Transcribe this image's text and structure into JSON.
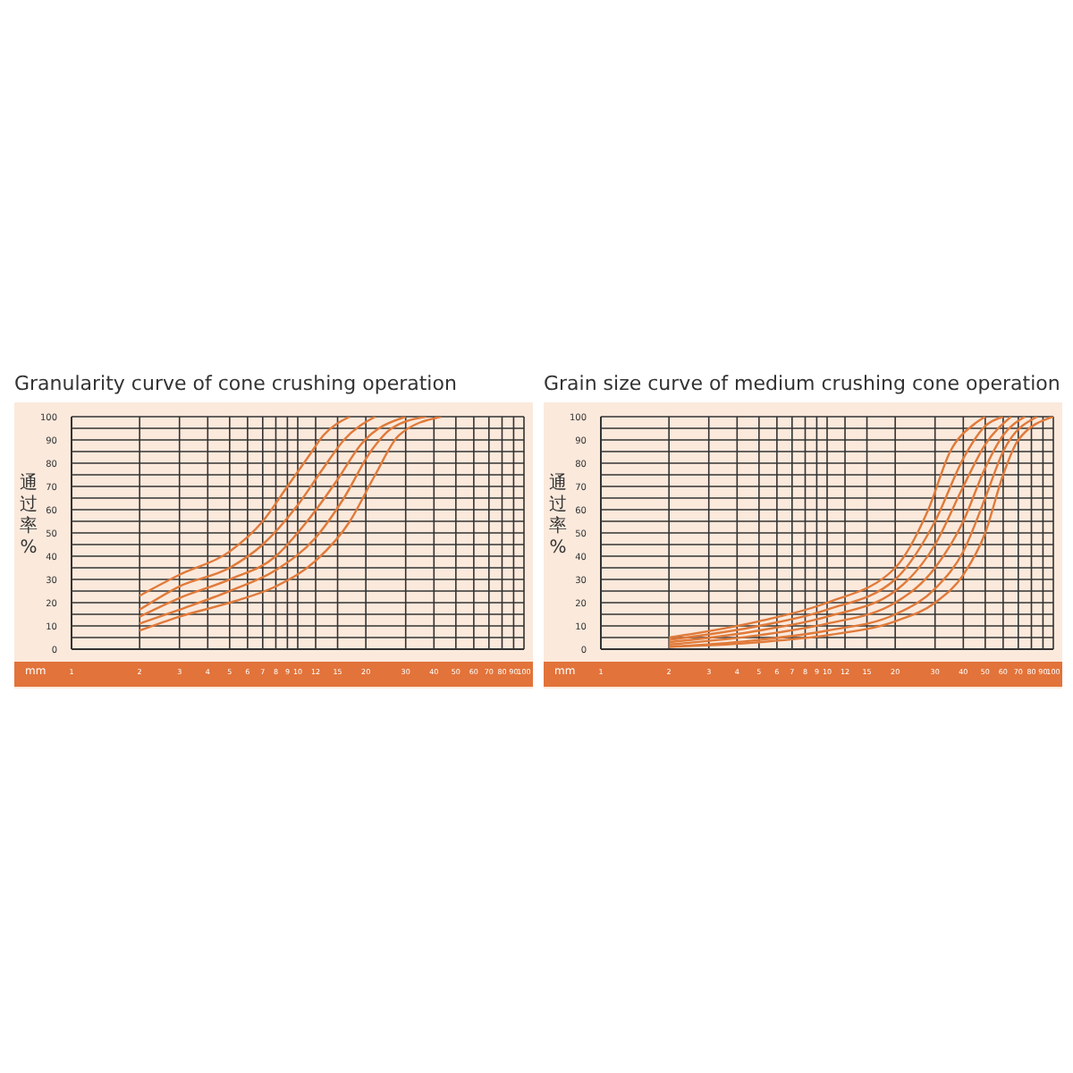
{
  "chart_data": [
    {
      "type": "line",
      "title": "Granularity curve of cone crushing operation",
      "xlabel": "mm",
      "ylabel": "通过率 %",
      "log": "x",
      "grid": true,
      "marker": "none",
      "line_style": "solid",
      "xlim": [
        1,
        100
      ],
      "xticks": [
        1,
        2,
        3,
        4,
        5,
        6,
        7,
        8,
        9,
        10,
        12,
        15,
        20,
        30,
        40,
        50,
        60,
        70,
        80,
        90,
        100
      ],
      "ylim": [
        0,
        100
      ],
      "yticks": [
        0,
        {
          "value": 5,
          "label": null
        },
        10,
        {
          "value": 15,
          "label": null
        },
        20,
        {
          "value": 25,
          "label": null
        },
        30,
        {
          "value": 35,
          "label": null
        },
        40,
        {
          "value": 45,
          "label": null
        },
        50,
        {
          "value": 55,
          "label": null
        },
        60,
        {
          "value": 65,
          "label": null
        },
        70,
        {
          "value": 75,
          "label": null
        },
        80,
        {
          "value": 85,
          "label": null
        },
        90,
        {
          "value": 95,
          "label": null
        },
        100
      ],
      "series": [
        {
          "color": "#e07a3a",
          "x": [
            2,
            3,
            5,
            7,
            9,
            11,
            13,
            17
          ],
          "values": [
            23,
            32,
            42,
            55,
            70,
            82,
            92,
            100
          ]
        },
        {
          "color": "#e07a3a",
          "x": [
            2,
            3,
            5,
            7,
            10,
            13,
            16,
            22
          ],
          "values": [
            17,
            27,
            35,
            45,
            62,
            78,
            90,
            100
          ]
        },
        {
          "color": "#e07a3a",
          "x": [
            2,
            3,
            5,
            8,
            11,
            15,
            19,
            30
          ],
          "values": [
            14,
            22,
            30,
            40,
            55,
            73,
            88,
            100
          ]
        },
        {
          "color": "#e07a3a",
          "x": [
            2,
            3,
            5,
            8,
            12,
            16,
            21,
            26,
            37
          ],
          "values": [
            11,
            17,
            25,
            34,
            48,
            65,
            85,
            95,
            100
          ]
        },
        {
          "color": "#e07a3a",
          "x": [
            2,
            3,
            5,
            8,
            12,
            17,
            22,
            28,
            43
          ],
          "values": [
            8,
            14,
            20,
            27,
            38,
            55,
            75,
            92,
            100
          ]
        }
      ]
    },
    {
      "type": "line",
      "title": "Grain size curve of medium crushing cone operation",
      "xlabel": "mm",
      "ylabel": "通过率 %",
      "log": "x",
      "grid": true,
      "marker": "none",
      "line_style": "solid",
      "xlim": [
        1,
        100
      ],
      "xticks": [
        1,
        2,
        3,
        4,
        5,
        6,
        7,
        8,
        9,
        10,
        12,
        15,
        20,
        30,
        40,
        50,
        60,
        70,
        80,
        90,
        100
      ],
      "ylim": [
        0,
        100
      ],
      "yticks": [
        0,
        {
          "value": 5,
          "label": null
        },
        10,
        {
          "value": 15,
          "label": null
        },
        20,
        {
          "value": 25,
          "label": null
        },
        30,
        {
          "value": 35,
          "label": null
        },
        40,
        {
          "value": 45,
          "label": null
        },
        50,
        {
          "value": 55,
          "label": null
        },
        60,
        {
          "value": 65,
          "label": null
        },
        70,
        {
          "value": 75,
          "label": null
        },
        80,
        {
          "value": 85,
          "label": null
        },
        90,
        {
          "value": 95,
          "label": null
        },
        100
      ],
      "series": [
        {
          "color": "#e07a3a",
          "x": [
            2,
            5,
            10,
            20,
            28,
            35,
            45,
            50
          ],
          "values": [
            5,
            12,
            20,
            35,
            60,
            85,
            97,
            100
          ]
        },
        {
          "color": "#e07a3a",
          "x": [
            2,
            5,
            10,
            20,
            30,
            40,
            50,
            60
          ],
          "values": [
            4,
            10,
            17,
            30,
            55,
            82,
            96,
            100
          ]
        },
        {
          "color": "#e07a3a",
          "x": [
            2,
            5,
            10,
            20,
            30,
            40,
            50,
            65
          ],
          "values": [
            3,
            8,
            14,
            25,
            45,
            70,
            88,
            100
          ]
        },
        {
          "color": "#e07a3a",
          "x": [
            2,
            5,
            10,
            20,
            30,
            40,
            50,
            60,
            75
          ],
          "values": [
            2,
            6,
            11,
            20,
            35,
            55,
            78,
            92,
            100
          ]
        },
        {
          "color": "#e07a3a",
          "x": [
            2,
            5,
            10,
            20,
            30,
            40,
            50,
            60,
            85
          ],
          "values": [
            1,
            4,
            8,
            15,
            26,
            42,
            65,
            85,
            100
          ]
        },
        {
          "color": "#e07a3a",
          "x": [
            2,
            5,
            10,
            20,
            30,
            40,
            50,
            60,
            70,
            100
          ],
          "values": [
            1,
            3,
            6,
            12,
            20,
            32,
            50,
            75,
            90,
            100
          ]
        }
      ]
    }
  ]
}
